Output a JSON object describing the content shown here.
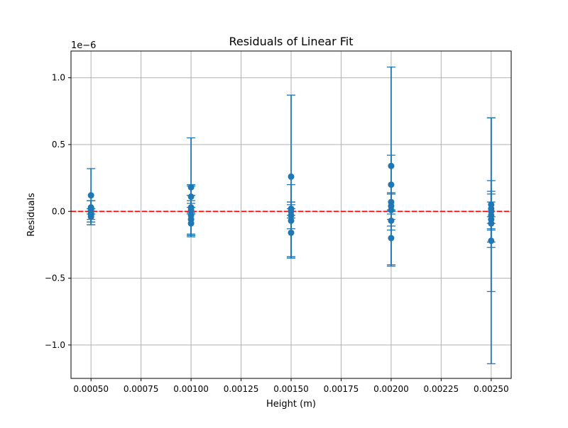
{
  "chart_data": {
    "type": "scatter",
    "title": "Residuals of Linear Fit",
    "xlabel": "Height (m)",
    "ylabel": "Residuals",
    "y_offset_label": "1e−6",
    "y_scale": 1e-06,
    "xlim": [
      0.0004,
      0.0026
    ],
    "ylim": [
      -1.25,
      1.2
    ],
    "x_ticks": [
      0.0005,
      0.00075,
      0.001,
      0.00125,
      0.0015,
      0.00175,
      0.002,
      0.00225,
      0.0025
    ],
    "x_tick_labels": [
      "0.00050",
      "0.00075",
      "0.00100",
      "0.00125",
      "0.00150",
      "0.00175",
      "0.00200",
      "0.00225",
      "0.00250"
    ],
    "y_ticks": [
      -1.0,
      -0.5,
      0.0,
      0.5,
      1.0
    ],
    "y_tick_labels": [
      "−1.0",
      "−0.5",
      "0.0",
      "0.5",
      "1.0"
    ],
    "grid": true,
    "reference_line": {
      "y": 0,
      "style": "dashed",
      "color": "#ff0000"
    },
    "colors": {
      "series": "#1f77b4",
      "reference": "#ff0000",
      "grid": "#b0b0b0"
    },
    "series": [
      {
        "points": [
          {
            "x": 0.0005,
            "y": 0.12,
            "err": 0.2
          },
          {
            "x": 0.0005,
            "y": 0.03,
            "err": 0.05
          },
          {
            "x": 0.0005,
            "y": 0.01,
            "err": 0.07
          },
          {
            "x": 0.0005,
            "y": -0.01,
            "err": 0.09
          },
          {
            "x": 0.0005,
            "y": -0.03,
            "err": 0.05
          },
          {
            "x": 0.0005,
            "y": -0.04,
            "err": 0.06
          },
          {
            "x": 0.001,
            "y": 0.18,
            "err": 0.37
          },
          {
            "x": 0.001,
            "y": 0.11,
            "err": 0.08
          },
          {
            "x": 0.001,
            "y": 0.03,
            "err": 0.05
          },
          {
            "x": 0.001,
            "y": 0.01,
            "err": 0.19
          },
          {
            "x": 0.001,
            "y": -0.03,
            "err": 0.15
          },
          {
            "x": 0.001,
            "y": -0.06,
            "err": 0.12
          },
          {
            "x": 0.001,
            "y": -0.09,
            "err": 0.08
          },
          {
            "x": 0.0015,
            "y": 0.26,
            "err": 0.61
          },
          {
            "x": 0.0015,
            "y": 0.02,
            "err": 0.05
          },
          {
            "x": 0.0015,
            "y": 0.0,
            "err": 0.05
          },
          {
            "x": 0.0015,
            "y": -0.03,
            "err": 0.1
          },
          {
            "x": 0.0015,
            "y": -0.07,
            "err": 0.27
          },
          {
            "x": 0.0015,
            "y": -0.16,
            "err": 0.18
          },
          {
            "x": 0.002,
            "y": 0.34,
            "err": 0.74
          },
          {
            "x": 0.002,
            "y": 0.2,
            "err": 0.22
          },
          {
            "x": 0.002,
            "y": 0.07,
            "err": 0.06
          },
          {
            "x": 0.002,
            "y": 0.04,
            "err": 0.1
          },
          {
            "x": 0.002,
            "y": 0.01,
            "err": 0.12
          },
          {
            "x": 0.002,
            "y": -0.07,
            "err": 0.07
          },
          {
            "x": 0.002,
            "y": -0.2,
            "err": 0.21
          },
          {
            "x": 0.0025,
            "y": 0.05,
            "err": 0.65
          },
          {
            "x": 0.0025,
            "y": 0.02,
            "err": 0.11
          },
          {
            "x": 0.0025,
            "y": 0.0,
            "err": 0.23
          },
          {
            "x": 0.0025,
            "y": -0.03,
            "err": 0.1
          },
          {
            "x": 0.0025,
            "y": -0.06,
            "err": 0.21
          },
          {
            "x": 0.0025,
            "y": -0.09,
            "err": 0.05
          },
          {
            "x": 0.0025,
            "y": -0.22,
            "err": 0.92
          }
        ]
      }
    ]
  }
}
